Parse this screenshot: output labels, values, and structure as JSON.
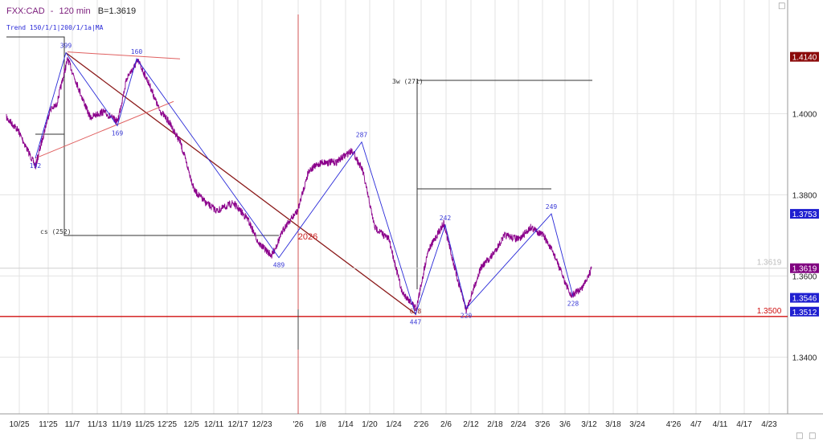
{
  "header": {
    "symbol": "FXX:CAD",
    "separator": "-",
    "interval": "120 min",
    "last_label": "B=1.3619",
    "indicator_label": "Trend 150/1/1|200/1/1a|MA"
  },
  "chart_data": {
    "type": "line",
    "title": "FXX:CAD - 120 min",
    "y_range": [
      1.326,
      1.428
    ],
    "y_ticks": [
      {
        "label": "1.4000",
        "value": 1.4
      },
      {
        "label": "1.3800",
        "value": 1.38
      },
      {
        "label": "1.3600",
        "value": 1.36
      },
      {
        "label": "1.3400",
        "value": 1.34
      }
    ],
    "x_ticks": [
      "10/25",
      "11'25",
      "11/7",
      "11/13",
      "11/19",
      "11/25",
      "12'25",
      "12/5",
      "12/11",
      "12/17",
      "12/23",
      "'26",
      "1/8",
      "1/14",
      "1/20",
      "1/24",
      "2'26",
      "2/6",
      "2/12",
      "2/18",
      "2/24",
      "3'26",
      "3/6",
      "3/12",
      "3/18",
      "3/24",
      "4'26",
      "4/7",
      "4/11",
      "4/17",
      "4/23"
    ],
    "price_path": [
      {
        "x": "10/25",
        "y": 1.399
      },
      {
        "x": "",
        "y": 1.396
      },
      {
        "x": "",
        "y": 1.387
      },
      {
        "x": "",
        "y": 1.401
      },
      {
        "x": "11'25",
        "y": 1.402
      },
      {
        "x": "11/7",
        "y": 1.4135
      },
      {
        "x": "",
        "y": 1.406
      },
      {
        "x": "",
        "y": 1.399
      },
      {
        "x": "11/13",
        "y": 1.4005
      },
      {
        "x": "11/19",
        "y": 1.398
      },
      {
        "x": "",
        "y": 1.409
      },
      {
        "x": "11/25",
        "y": 1.413
      },
      {
        "x": "",
        "y": 1.407
      },
      {
        "x": "12'25",
        "y": 1.401
      },
      {
        "x": "",
        "y": 1.398
      },
      {
        "x": "12/5",
        "y": 1.393
      },
      {
        "x": "",
        "y": 1.381
      },
      {
        "x": "12/11",
        "y": 1.378
      },
      {
        "x": "",
        "y": 1.376
      },
      {
        "x": "12/17",
        "y": 1.378
      },
      {
        "x": "",
        "y": 1.374
      },
      {
        "x": "12/23",
        "y": 1.368
      },
      {
        "x": "",
        "y": 1.365
      },
      {
        "x": "'26",
        "y": 1.372
      },
      {
        "x": "",
        "y": 1.376
      },
      {
        "x": "1/8",
        "y": 1.386
      },
      {
        "x": "",
        "y": 1.388
      },
      {
        "x": "1/14",
        "y": 1.388
      },
      {
        "x": "1/20",
        "y": 1.391
      },
      {
        "x": "",
        "y": 1.386
      },
      {
        "x": "1/24",
        "y": 1.372
      },
      {
        "x": "",
        "y": 1.369
      },
      {
        "x": "",
        "y": 1.356
      },
      {
        "x": "2'26",
        "y": 1.352
      },
      {
        "x": "",
        "y": 1.366
      },
      {
        "x": "2/6",
        "y": 1.373
      },
      {
        "x": "",
        "y": 1.36
      },
      {
        "x": "2/12",
        "y": 1.3515
      },
      {
        "x": "",
        "y": 1.362
      },
      {
        "x": "2/18",
        "y": 1.365
      },
      {
        "x": "",
        "y": 1.37
      },
      {
        "x": "2/24",
        "y": 1.369
      },
      {
        "x": "",
        "y": 1.372
      },
      {
        "x": "3'26",
        "y": 1.37
      },
      {
        "x": "",
        "y": 1.365
      },
      {
        "x": "3/6",
        "y": 1.355
      },
      {
        "x": "",
        "y": 1.357
      },
      {
        "x": "3/12",
        "y": 1.3619
      }
    ],
    "pivots": [
      {
        "label": "192",
        "x": "",
        "y": 1.389,
        "pos": "below"
      },
      {
        "label": "399",
        "x": "",
        "y": 1.415,
        "pos": "above"
      },
      {
        "label": "169",
        "x": "",
        "y": 1.397,
        "pos": "below"
      },
      {
        "label": "160",
        "x": "",
        "y": 1.4135,
        "pos": "above"
      },
      {
        "label": "489",
        "x": "",
        "y": 1.3645,
        "pos": "below"
      },
      {
        "label": "287",
        "x": "",
        "y": 1.393,
        "pos": "above"
      },
      {
        "label": "447",
        "x": "",
        "y": 1.3505,
        "pos": "below"
      },
      {
        "label": "242",
        "x": "",
        "y": 1.3725,
        "pos": "above"
      },
      {
        "label": "220",
        "x": "",
        "y": 1.352,
        "pos": "below"
      },
      {
        "label": "249",
        "x": "",
        "y": 1.3753,
        "pos": "above"
      },
      {
        "label": "228",
        "x": "",
        "y": 1.355,
        "pos": "below"
      }
    ],
    "support_line": {
      "label": "1.3500",
      "value": 1.35,
      "color": "#d01010"
    },
    "last_price_line": {
      "label": "1.3619",
      "value": 1.3619
    },
    "boxes": [
      {
        "label": "cs (252)"
      },
      {
        "label": "3w (271)"
      }
    ],
    "annotations": [
      {
        "text": "2026",
        "color": "#cc2222"
      },
      {
        "text": "658",
        "color": "#8b1a1a"
      }
    ],
    "price_tags": [
      {
        "label": "1.4140",
        "value": 1.414,
        "bg": "#8b0a0a"
      },
      {
        "label": "1.3753",
        "value": 1.3753,
        "bg": "#1f1fd0"
      },
      {
        "label": "1.3619",
        "value": 1.3619,
        "bg": "#800080"
      },
      {
        "label": "1.3546",
        "value": 1.3546,
        "bg": "#1f1fd0"
      },
      {
        "label": "1.3512",
        "value": 1.3512,
        "bg": "#1f1fd0"
      }
    ],
    "grid": true,
    "colors": {
      "price": "#8b008b",
      "zigzag": "#2a2ad8",
      "trendline": "#8b1a1a",
      "channel": "#e06060"
    }
  },
  "controls": {
    "top_right_marker": "□",
    "bottom_right_icons": [
      "□",
      "□"
    ]
  }
}
